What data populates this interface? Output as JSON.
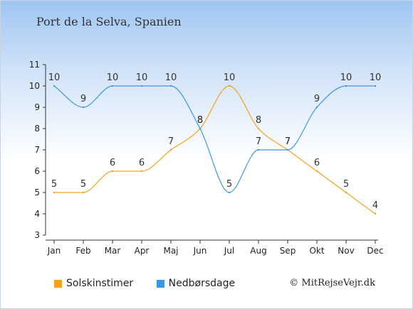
{
  "title": "Port de la Selva, Spanien",
  "copyright": "© MitRejseVejr.dk",
  "chart_data": {
    "type": "line",
    "categories": [
      "Jan",
      "Feb",
      "Mar",
      "Apr",
      "Maj",
      "Jun",
      "Jul",
      "Aug",
      "Sep",
      "Okt",
      "Nov",
      "Dec"
    ],
    "ylim": [
      3,
      11
    ],
    "yticks": [
      3,
      4,
      5,
      6,
      7,
      8,
      9,
      10,
      11
    ],
    "grid": false,
    "legend_position": "bottom-left",
    "series": [
      {
        "name": "Solskinstimer",
        "color": "#f4a21c",
        "values": [
          5,
          5,
          6,
          6,
          7,
          8,
          10,
          8,
          7,
          6,
          5,
          4
        ]
      },
      {
        "name": "Nedbørsdage",
        "color": "#3b97e3",
        "values": [
          10,
          9,
          10,
          10,
          10,
          8,
          5,
          7,
          7,
          9,
          10,
          10
        ]
      }
    ]
  }
}
